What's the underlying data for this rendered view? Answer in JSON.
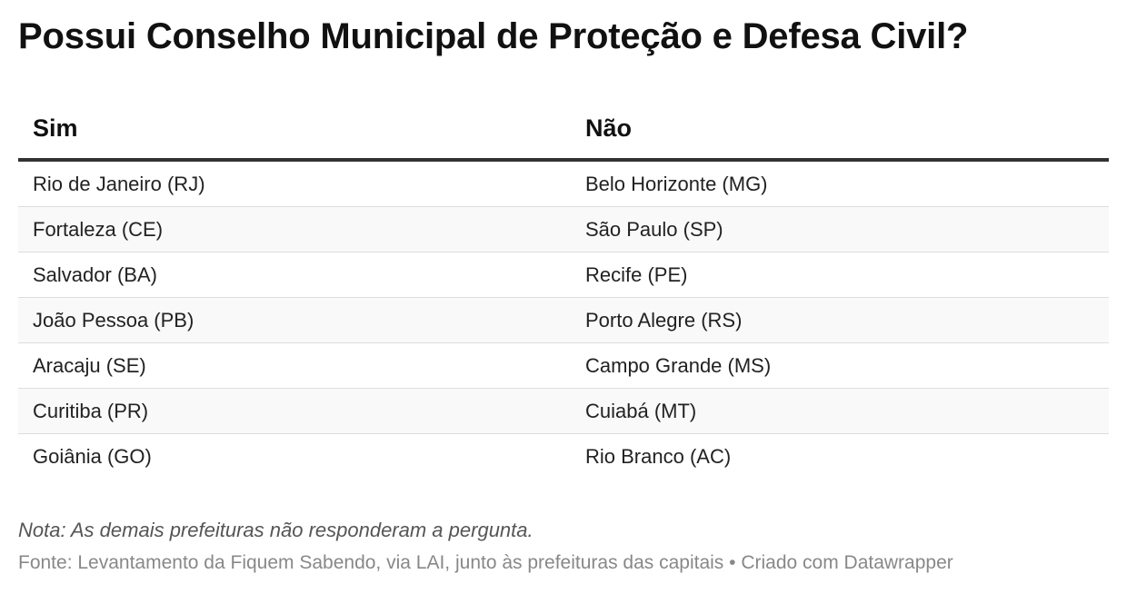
{
  "chart_data": {
    "type": "table",
    "title": "Possui Conselho Municipal de Proteção e Defesa Civil?",
    "columns": [
      "Sim",
      "Não"
    ],
    "rows": [
      [
        "Rio de Janeiro (RJ)",
        "Belo Horizonte (MG)"
      ],
      [
        "Fortaleza (CE)",
        "São Paulo (SP)"
      ],
      [
        "Salvador (BA)",
        "Recife (PE)"
      ],
      [
        "João Pessoa (PB)",
        "Porto Alegre (RS)"
      ],
      [
        "Aracaju (SE)",
        "Campo Grande (MS)"
      ],
      [
        "Curitiba (PR)",
        "Cuiabá (MT)"
      ],
      [
        "Goiânia (GO)",
        "Rio Branco (AC)"
      ]
    ],
    "note": "Nota: As demais prefeituras não responderam a pergunta.",
    "source": "Fonte: Levantamento da Fiquem Sabendo, via LAI, junto às prefeituras das capitais • Criado com Datawrapper"
  }
}
